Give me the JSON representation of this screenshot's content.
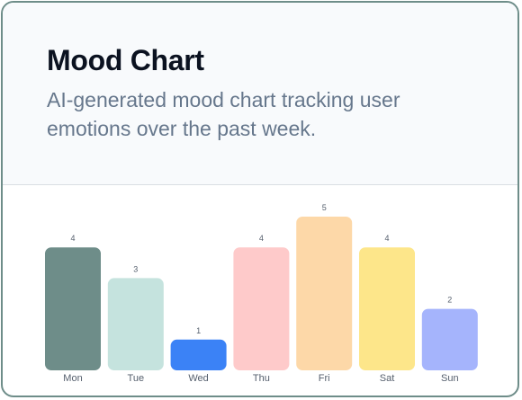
{
  "card": {
    "title": "Mood Chart",
    "description": "AI-generated mood chart tracking user emotions over the past week."
  },
  "chart_data": {
    "type": "bar",
    "title": "",
    "xlabel": "",
    "ylabel": "",
    "categories": [
      "Mon",
      "Tue",
      "Wed",
      "Thu",
      "Fri",
      "Sat",
      "Sun"
    ],
    "values": [
      4,
      3,
      1,
      4,
      5,
      4,
      2
    ],
    "ylim": [
      0,
      5
    ],
    "grid": false,
    "legend": "none",
    "colors": [
      "#6e8d89",
      "#c5e3de",
      "#3b82f6",
      "#fecaca",
      "#fdd8a8",
      "#fde68a",
      "#a5b4fc"
    ],
    "label_color": "#555f6d"
  }
}
